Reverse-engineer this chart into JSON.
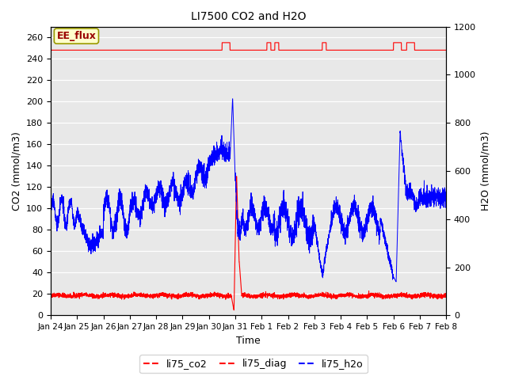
{
  "title": "LI7500 CO2 and H2O",
  "xlabel": "Time",
  "ylabel_left": "CO2 (mmol/m3)",
  "ylabel_right": "H2O (mmol/m3)",
  "ylim_left": [
    0,
    270
  ],
  "ylim_right": [
    0,
    1200
  ],
  "yticks_left": [
    0,
    20,
    40,
    60,
    80,
    100,
    120,
    140,
    160,
    180,
    200,
    220,
    240,
    260
  ],
  "yticks_right": [
    0,
    200,
    400,
    600,
    800,
    1000,
    1200
  ],
  "xtick_labels": [
    "Jan 24",
    "Jan 25",
    "Jan 26",
    "Jan 27",
    "Jan 28",
    "Jan 29",
    "Jan 30",
    "Jan 31",
    "Feb 1",
    "Feb 2",
    "Feb 3",
    "Feb 4",
    "Feb 5",
    "Feb 6",
    "Feb 7",
    "Feb 8"
  ],
  "annotation_text": "EE_flux",
  "annotation_bg": "#ffffcc",
  "annotation_border": "#999900",
  "annotation_text_color": "#990000",
  "line_co2_color": "#ff0000",
  "line_diag_color": "#ff0000",
  "line_h2o_color": "#0000ff",
  "background_color": "#e8e8e8",
  "n_points": 3600,
  "legend_labels": [
    "li75_co2",
    "li75_diag",
    "li75_h2o"
  ]
}
